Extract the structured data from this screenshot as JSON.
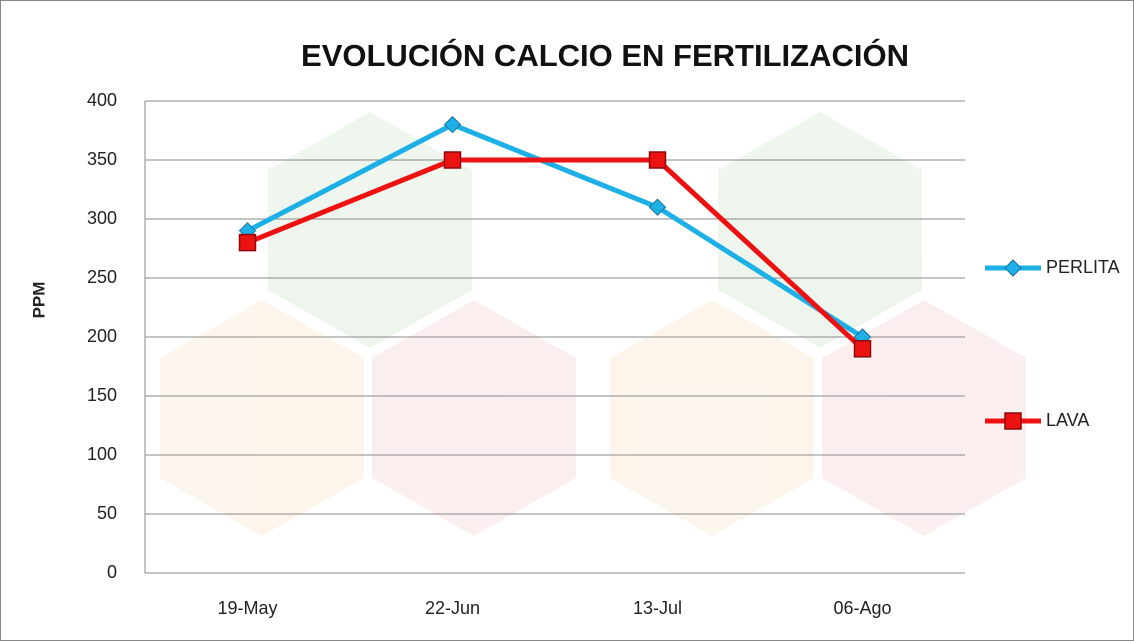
{
  "chart_data": {
    "type": "line",
    "title": "EVOLUCIÓN CALCIO EN FERTILIZACIÓN",
    "y_label": "PPM",
    "categories": [
      "19-May",
      "22-Jun",
      "13-Jul",
      "06-Ago"
    ],
    "series": [
      {
        "name": "PERLITA",
        "color": "#1cb0e6",
        "marker": "diamond",
        "values": [
          290,
          380,
          310,
          200
        ]
      },
      {
        "name": "LAVA",
        "color": "#ee1111",
        "marker": "square",
        "values": [
          280,
          350,
          350,
          190
        ]
      }
    ],
    "ylim": [
      0,
      400
    ],
    "yticks": [
      0,
      50,
      100,
      150,
      200,
      250,
      300,
      350,
      400
    ],
    "grid": true,
    "legend": "right"
  }
}
